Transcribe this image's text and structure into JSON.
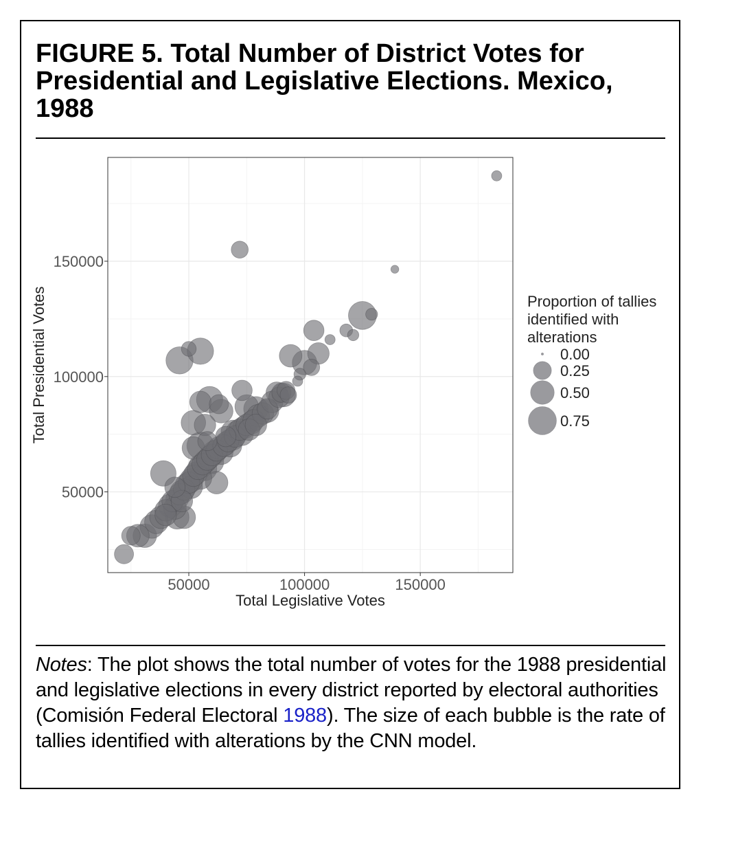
{
  "figure": {
    "title": "FIGURE 5.   Total Number of District Votes for Presidential and Legislative Elections. Mexico, 1988"
  },
  "notes": {
    "label": "Notes",
    "text_before": ": The plot shows the total number of votes for the 1988 presidential and legislative elections in every district reported by electoral authorities (Comisión Federal Electoral ",
    "ref": "1988",
    "text_after": "). The size of each bubble is the rate of tallies identified with alterations by the CNN model."
  },
  "chart_data": {
    "type": "scatter",
    "title": "",
    "xlabel": "Total Legislative Votes",
    "ylabel": "Total Presidential Votes",
    "xlim": [
      15000,
      190000
    ],
    "ylim": [
      15000,
      195000
    ],
    "xticks": [
      50000,
      100000,
      150000
    ],
    "yticks": [
      50000,
      100000,
      150000
    ],
    "xtick_labels": [
      "50000",
      "100000",
      "150000"
    ],
    "ytick_labels": [
      "50000",
      "100000",
      "150000"
    ],
    "grid": true,
    "point_color": "#6e6e72",
    "legend": {
      "title": "Proportion of tallies identified with alterations",
      "position": "right",
      "entries": [
        {
          "label": "0.00",
          "size": 0.0
        },
        {
          "label": "0.25",
          "size": 0.25
        },
        {
          "label": "0.50",
          "size": 0.5
        },
        {
          "label": "0.75",
          "size": 0.75
        }
      ]
    },
    "points": [
      {
        "x": 183000,
        "y": 187000,
        "size": 0.05
      },
      {
        "x": 72000,
        "y": 155000,
        "size": 0.22
      },
      {
        "x": 139000,
        "y": 146500,
        "size": 0.02
      },
      {
        "x": 125000,
        "y": 126500,
        "size": 0.75
      },
      {
        "x": 129000,
        "y": 127000,
        "size": 0.08
      },
      {
        "x": 104000,
        "y": 120000,
        "size": 0.35
      },
      {
        "x": 111000,
        "y": 116000,
        "size": 0.05
      },
      {
        "x": 118000,
        "y": 120000,
        "size": 0.1
      },
      {
        "x": 121000,
        "y": 118000,
        "size": 0.07
      },
      {
        "x": 55000,
        "y": 111000,
        "size": 0.65
      },
      {
        "x": 50000,
        "y": 112000,
        "size": 0.15
      },
      {
        "x": 46000,
        "y": 107000,
        "size": 0.7
      },
      {
        "x": 94000,
        "y": 109000,
        "size": 0.45
      },
      {
        "x": 100000,
        "y": 106000,
        "size": 0.55
      },
      {
        "x": 106000,
        "y": 110000,
        "size": 0.4
      },
      {
        "x": 103000,
        "y": 104000,
        "size": 0.2
      },
      {
        "x": 98000,
        "y": 101000,
        "size": 0.08
      },
      {
        "x": 97000,
        "y": 98000,
        "size": 0.05
      },
      {
        "x": 73000,
        "y": 94000,
        "size": 0.35
      },
      {
        "x": 59000,
        "y": 90000,
        "size": 0.65
      },
      {
        "x": 55000,
        "y": 89000,
        "size": 0.4
      },
      {
        "x": 63000,
        "y": 88000,
        "size": 0.3
      },
      {
        "x": 64000,
        "y": 85000,
        "size": 0.5
      },
      {
        "x": 52000,
        "y": 80000,
        "size": 0.55
      },
      {
        "x": 57000,
        "y": 79000,
        "size": 0.4
      },
      {
        "x": 55000,
        "y": 70000,
        "size": 0.7
      },
      {
        "x": 52000,
        "y": 69000,
        "size": 0.45
      },
      {
        "x": 58000,
        "y": 72000,
        "size": 0.3
      },
      {
        "x": 39000,
        "y": 58000,
        "size": 0.6
      },
      {
        "x": 44000,
        "y": 52000,
        "size": 0.35
      },
      {
        "x": 62000,
        "y": 54000,
        "size": 0.45
      },
      {
        "x": 66000,
        "y": 74000,
        "size": 0.35
      },
      {
        "x": 69000,
        "y": 76000,
        "size": 0.5
      },
      {
        "x": 75000,
        "y": 87000,
        "size": 0.5
      },
      {
        "x": 79000,
        "y": 86000,
        "size": 0.55
      },
      {
        "x": 84000,
        "y": 85000,
        "size": 0.45
      },
      {
        "x": 88000,
        "y": 93000,
        "size": 0.4
      },
      {
        "x": 91000,
        "y": 92000,
        "size": 0.5
      },
      {
        "x": 45000,
        "y": 39000,
        "size": 0.5
      },
      {
        "x": 48000,
        "y": 39000,
        "size": 0.45
      },
      {
        "x": 22000,
        "y": 23000,
        "size": 0.3
      },
      {
        "x": 25000,
        "y": 31000,
        "size": 0.28
      },
      {
        "x": 28000,
        "y": 31000,
        "size": 0.45
      },
      {
        "x": 31000,
        "y": 31000,
        "size": 0.5
      },
      {
        "x": 34000,
        "y": 35000,
        "size": 0.5
      },
      {
        "x": 36000,
        "y": 37000,
        "size": 0.5
      },
      {
        "x": 38000,
        "y": 39000,
        "size": 0.45
      },
      {
        "x": 40000,
        "y": 42000,
        "size": 0.4
      },
      {
        "x": 42000,
        "y": 44000,
        "size": 0.5
      },
      {
        "x": 43000,
        "y": 46000,
        "size": 0.4
      },
      {
        "x": 45000,
        "y": 47000,
        "size": 0.45
      },
      {
        "x": 46000,
        "y": 49000,
        "size": 0.4
      },
      {
        "x": 47000,
        "y": 50000,
        "size": 0.5
      },
      {
        "x": 48000,
        "y": 51000,
        "size": 0.4
      },
      {
        "x": 49000,
        "y": 53000,
        "size": 0.45
      },
      {
        "x": 50000,
        "y": 54000,
        "size": 0.4
      },
      {
        "x": 51000,
        "y": 55000,
        "size": 0.5
      },
      {
        "x": 52000,
        "y": 57000,
        "size": 0.4
      },
      {
        "x": 53000,
        "y": 58000,
        "size": 0.45
      },
      {
        "x": 54000,
        "y": 60000,
        "size": 0.4
      },
      {
        "x": 55000,
        "y": 61000,
        "size": 0.5
      },
      {
        "x": 56000,
        "y": 62000,
        "size": 0.4
      },
      {
        "x": 57000,
        "y": 63000,
        "size": 0.45
      },
      {
        "x": 58000,
        "y": 64000,
        "size": 0.4
      },
      {
        "x": 59000,
        "y": 65000,
        "size": 0.45
      },
      {
        "x": 60000,
        "y": 66000,
        "size": 0.4
      },
      {
        "x": 61000,
        "y": 67000,
        "size": 0.5
      },
      {
        "x": 62000,
        "y": 68000,
        "size": 0.4
      },
      {
        "x": 63000,
        "y": 69000,
        "size": 0.45
      },
      {
        "x": 65000,
        "y": 70000,
        "size": 0.4
      },
      {
        "x": 66000,
        "y": 71000,
        "size": 0.45
      },
      {
        "x": 67000,
        "y": 72000,
        "size": 0.4
      },
      {
        "x": 69000,
        "y": 73000,
        "size": 0.45
      },
      {
        "x": 70000,
        "y": 74000,
        "size": 0.4
      },
      {
        "x": 71000,
        "y": 76000,
        "size": 0.45
      },
      {
        "x": 72000,
        "y": 77000,
        "size": 0.4
      },
      {
        "x": 74000,
        "y": 78000,
        "size": 0.45
      },
      {
        "x": 75000,
        "y": 79000,
        "size": 0.4
      },
      {
        "x": 77000,
        "y": 80000,
        "size": 0.45
      },
      {
        "x": 78000,
        "y": 81000,
        "size": 0.4
      },
      {
        "x": 80000,
        "y": 83000,
        "size": 0.45
      },
      {
        "x": 82000,
        "y": 84000,
        "size": 0.4
      },
      {
        "x": 84000,
        "y": 86000,
        "size": 0.35
      },
      {
        "x": 86000,
        "y": 89000,
        "size": 0.4
      },
      {
        "x": 89000,
        "y": 91000,
        "size": 0.35
      },
      {
        "x": 90000,
        "y": 93000,
        "size": 0.3
      },
      {
        "x": 92000,
        "y": 94000,
        "size": 0.25
      },
      {
        "x": 93000,
        "y": 92000,
        "size": 0.2
      },
      {
        "x": 57000,
        "y": 60000,
        "size": 0.5
      },
      {
        "x": 60000,
        "y": 63000,
        "size": 0.5
      },
      {
        "x": 64000,
        "y": 67000,
        "size": 0.5
      },
      {
        "x": 55000,
        "y": 56000,
        "size": 0.45
      },
      {
        "x": 51000,
        "y": 52000,
        "size": 0.45
      },
      {
        "x": 47000,
        "y": 46000,
        "size": 0.4
      },
      {
        "x": 44000,
        "y": 43000,
        "size": 0.45
      },
      {
        "x": 40000,
        "y": 40000,
        "size": 0.4
      },
      {
        "x": 68000,
        "y": 70000,
        "size": 0.45
      },
      {
        "x": 73000,
        "y": 75000,
        "size": 0.45
      },
      {
        "x": 76000,
        "y": 77000,
        "size": 0.4
      },
      {
        "x": 79000,
        "y": 79000,
        "size": 0.4
      }
    ]
  }
}
